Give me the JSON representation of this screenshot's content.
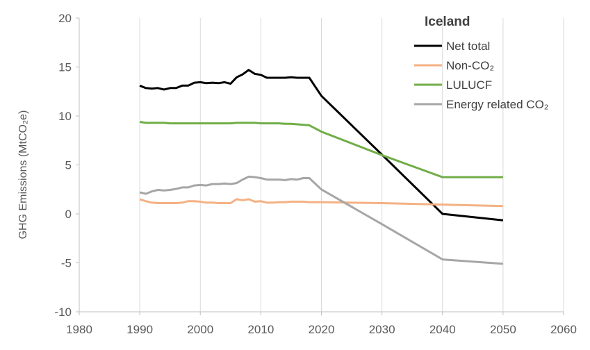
{
  "chart_data": {
    "type": "line",
    "title": "Iceland",
    "ylabel": "GHG Emissions (MtCO₂e)",
    "xlabel": "",
    "xlim": [
      1980,
      2060
    ],
    "ylim": [
      -10,
      20
    ],
    "xticks": [
      1980,
      1990,
      2000,
      2010,
      2020,
      2030,
      2040,
      2050,
      2060
    ],
    "yticks": [
      -10,
      -5,
      0,
      5,
      10,
      15,
      20
    ],
    "grid": "vertical",
    "legend_position": "top-right",
    "series": [
      {
        "name": "Net total",
        "color": "#000000",
        "points": [
          [
            1990,
            13.1
          ],
          [
            1991,
            12.85
          ],
          [
            1992,
            12.8
          ],
          [
            1993,
            12.85
          ],
          [
            1994,
            12.7
          ],
          [
            1995,
            12.85
          ],
          [
            1996,
            12.85
          ],
          [
            1997,
            13.1
          ],
          [
            1998,
            13.1
          ],
          [
            1999,
            13.4
          ],
          [
            2000,
            13.45
          ],
          [
            2001,
            13.35
          ],
          [
            2002,
            13.4
          ],
          [
            2003,
            13.35
          ],
          [
            2004,
            13.45
          ],
          [
            2005,
            13.3
          ],
          [
            2006,
            13.95
          ],
          [
            2007,
            14.25
          ],
          [
            2008,
            14.7
          ],
          [
            2009,
            14.3
          ],
          [
            2010,
            14.2
          ],
          [
            2011,
            13.9
          ],
          [
            2012,
            13.9
          ],
          [
            2013,
            13.9
          ],
          [
            2014,
            13.9
          ],
          [
            2015,
            13.95
          ],
          [
            2016,
            13.9
          ],
          [
            2017,
            13.9
          ],
          [
            2018,
            13.9
          ],
          [
            2020,
            12.05
          ],
          [
            2030,
            6.05
          ],
          [
            2040,
            0.0
          ],
          [
            2050,
            -0.65
          ]
        ]
      },
      {
        "name": "Non-CO₂",
        "color": "#F4B183",
        "points": [
          [
            1990,
            1.5
          ],
          [
            1991,
            1.3
          ],
          [
            1992,
            1.15
          ],
          [
            1993,
            1.1
          ],
          [
            1994,
            1.1
          ],
          [
            1995,
            1.1
          ],
          [
            1996,
            1.1
          ],
          [
            1997,
            1.15
          ],
          [
            1998,
            1.3
          ],
          [
            1999,
            1.3
          ],
          [
            2000,
            1.25
          ],
          [
            2001,
            1.15
          ],
          [
            2002,
            1.15
          ],
          [
            2003,
            1.1
          ],
          [
            2004,
            1.1
          ],
          [
            2005,
            1.1
          ],
          [
            2006,
            1.5
          ],
          [
            2007,
            1.4
          ],
          [
            2008,
            1.5
          ],
          [
            2009,
            1.25
          ],
          [
            2010,
            1.3
          ],
          [
            2011,
            1.15
          ],
          [
            2012,
            1.15
          ],
          [
            2013,
            1.2
          ],
          [
            2014,
            1.2
          ],
          [
            2015,
            1.25
          ],
          [
            2016,
            1.25
          ],
          [
            2017,
            1.25
          ],
          [
            2018,
            1.2
          ],
          [
            2020,
            1.2
          ],
          [
            2030,
            1.1
          ],
          [
            2040,
            0.95
          ],
          [
            2050,
            0.8
          ]
        ]
      },
      {
        "name": "LULUCF",
        "color": "#70AD47",
        "points": [
          [
            1990,
            9.4
          ],
          [
            1991,
            9.3
          ],
          [
            1992,
            9.3
          ],
          [
            1993,
            9.3
          ],
          [
            1994,
            9.3
          ],
          [
            1995,
            9.25
          ],
          [
            1996,
            9.25
          ],
          [
            1997,
            9.25
          ],
          [
            1998,
            9.25
          ],
          [
            1999,
            9.25
          ],
          [
            2000,
            9.25
          ],
          [
            2001,
            9.25
          ],
          [
            2002,
            9.25
          ],
          [
            2003,
            9.25
          ],
          [
            2004,
            9.25
          ],
          [
            2005,
            9.25
          ],
          [
            2006,
            9.3
          ],
          [
            2007,
            9.3
          ],
          [
            2008,
            9.3
          ],
          [
            2009,
            9.3
          ],
          [
            2010,
            9.25
          ],
          [
            2011,
            9.25
          ],
          [
            2012,
            9.25
          ],
          [
            2013,
            9.25
          ],
          [
            2014,
            9.2
          ],
          [
            2015,
            9.2
          ],
          [
            2016,
            9.15
          ],
          [
            2017,
            9.1
          ],
          [
            2018,
            9.05
          ],
          [
            2020,
            8.4
          ],
          [
            2030,
            6.0
          ],
          [
            2040,
            3.75
          ],
          [
            2050,
            3.75
          ]
        ]
      },
      {
        "name": "Energy related CO₂",
        "color": "#A6A6A6",
        "points": [
          [
            1990,
            2.2
          ],
          [
            1991,
            2.05
          ],
          [
            1992,
            2.3
          ],
          [
            1993,
            2.45
          ],
          [
            1994,
            2.4
          ],
          [
            1995,
            2.45
          ],
          [
            1996,
            2.55
          ],
          [
            1997,
            2.7
          ],
          [
            1998,
            2.7
          ],
          [
            1999,
            2.9
          ],
          [
            2000,
            2.95
          ],
          [
            2001,
            2.9
          ],
          [
            2002,
            3.05
          ],
          [
            2003,
            3.05
          ],
          [
            2004,
            3.1
          ],
          [
            2005,
            3.05
          ],
          [
            2006,
            3.15
          ],
          [
            2007,
            3.5
          ],
          [
            2008,
            3.8
          ],
          [
            2009,
            3.75
          ],
          [
            2010,
            3.65
          ],
          [
            2011,
            3.5
          ],
          [
            2012,
            3.5
          ],
          [
            2013,
            3.5
          ],
          [
            2014,
            3.45
          ],
          [
            2015,
            3.55
          ],
          [
            2016,
            3.5
          ],
          [
            2017,
            3.65
          ],
          [
            2018,
            3.65
          ],
          [
            2020,
            2.5
          ],
          [
            2030,
            -1.05
          ],
          [
            2040,
            -4.65
          ],
          [
            2050,
            -5.1
          ]
        ]
      }
    ]
  }
}
